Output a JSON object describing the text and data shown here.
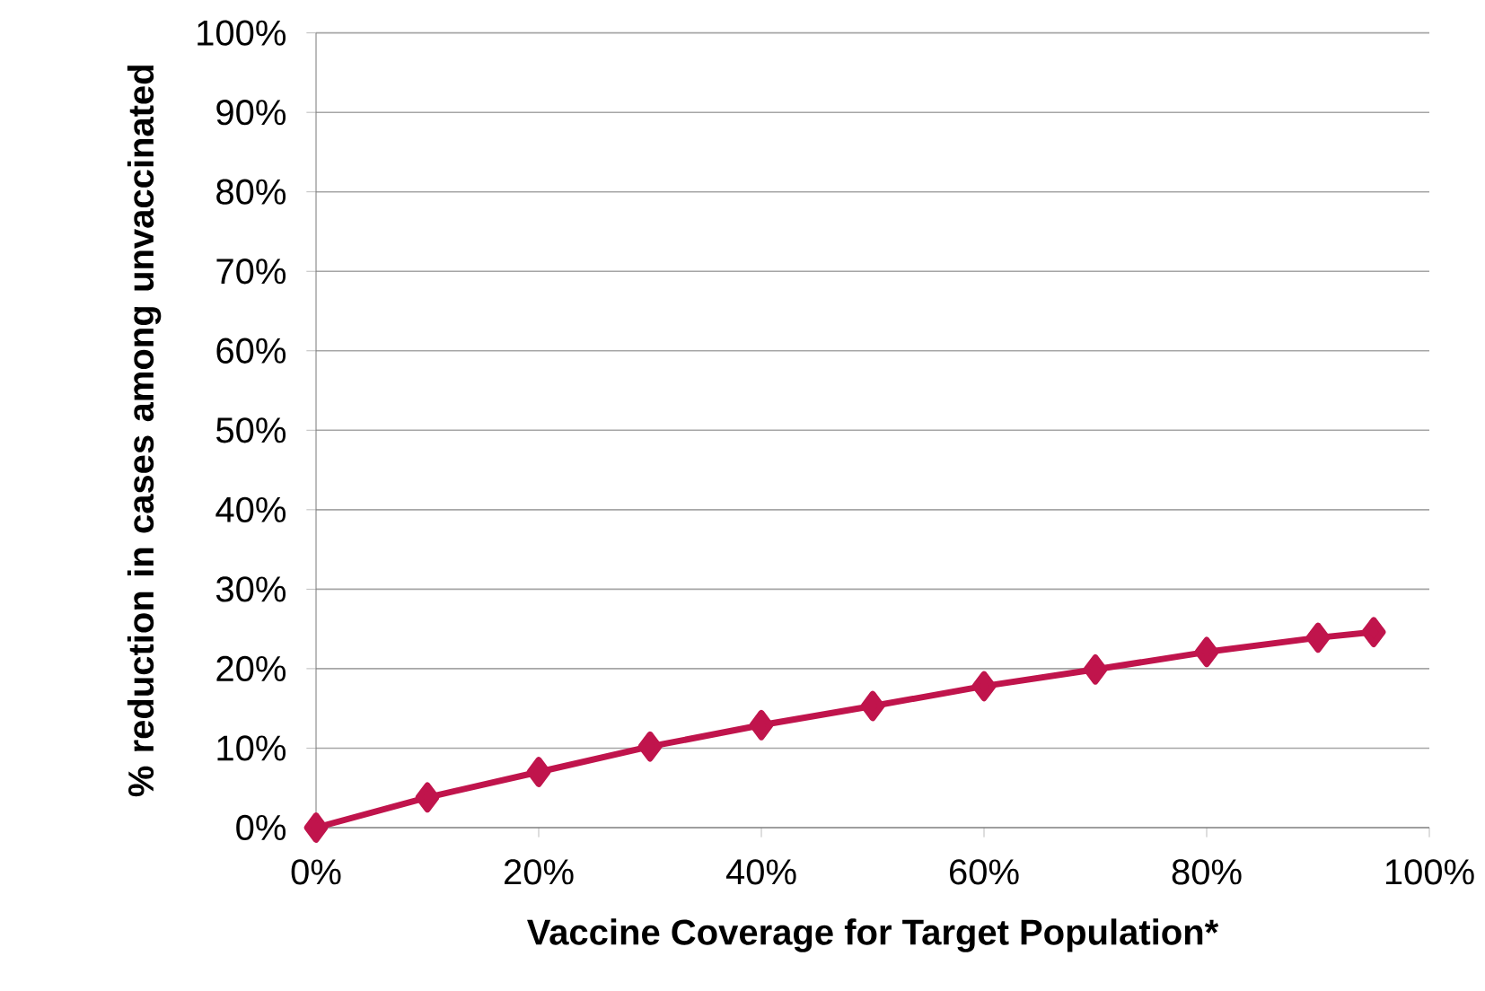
{
  "chart_data": {
    "type": "line",
    "xlabel": "Vaccine Coverage for Target Population*",
    "ylabel": "% reduction in cases among unvaccinated",
    "x": [
      0,
      10,
      20,
      30,
      40,
      50,
      60,
      70,
      80,
      90,
      95
    ],
    "series": [
      {
        "color": "#c0144c",
        "values": [
          0,
          3.8,
          7.0,
          10.2,
          12.9,
          15.3,
          17.8,
          19.9,
          22.1,
          23.9,
          24.6
        ]
      }
    ],
    "xlim": [
      0,
      100
    ],
    "ylim": [
      0,
      100
    ],
    "xticks": [
      {
        "value": 0,
        "label": "0%"
      },
      {
        "value": 20,
        "label": "20%"
      },
      {
        "value": 40,
        "label": "40%"
      },
      {
        "value": 60,
        "label": "60%"
      },
      {
        "value": 80,
        "label": "80%"
      },
      {
        "value": 100,
        "label": "100%"
      }
    ],
    "yticks": [
      {
        "value": 0,
        "label": "0%"
      },
      {
        "value": 10,
        "label": "10%"
      },
      {
        "value": 20,
        "label": "20%"
      },
      {
        "value": 30,
        "label": "30%"
      },
      {
        "value": 40,
        "label": "40%"
      },
      {
        "value": 50,
        "label": "50%"
      },
      {
        "value": 60,
        "label": "60%"
      },
      {
        "value": 70,
        "label": "70%"
      },
      {
        "value": 80,
        "label": "80%"
      },
      {
        "value": 90,
        "label": "90%"
      },
      {
        "value": 100,
        "label": "100%"
      }
    ],
    "grid": "y",
    "marker": "diamond",
    "line_style": "solid"
  }
}
